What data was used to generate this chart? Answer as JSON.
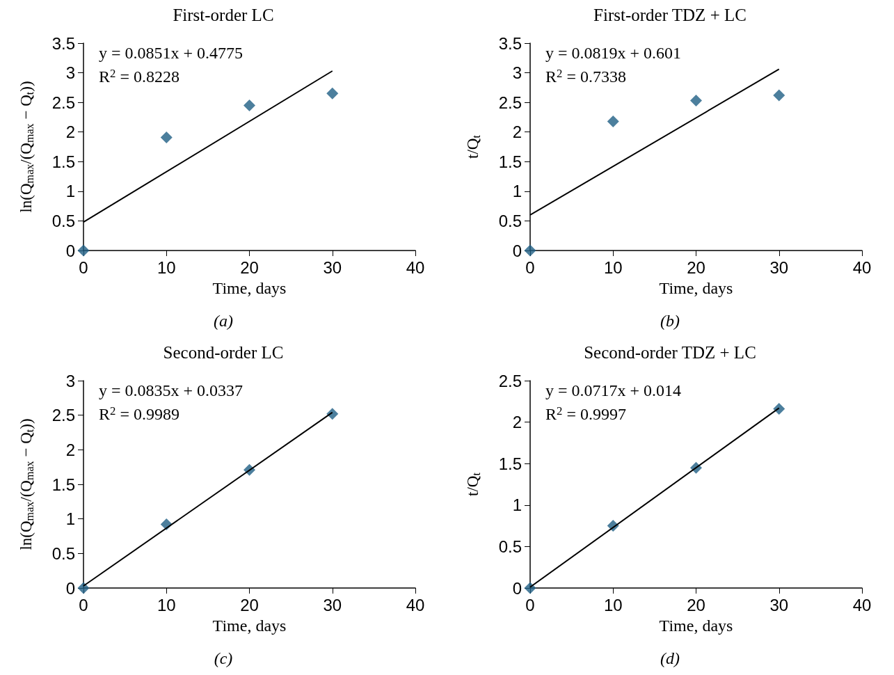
{
  "chart_data": [
    {
      "type": "scatter",
      "title": "First-order LC",
      "xlabel": "Time, days",
      "ylabel": "ln(Q$_{max}$/(Q$_{max}$ − Q$_{t}$))",
      "annotations": [
        "y = 0.0851x + 0.4775",
        "R$^{2}$ = 0.8228",
        "(a)"
      ],
      "xlim": [
        0,
        40
      ],
      "xticks": [
        0,
        10,
        20,
        30,
        40
      ],
      "ylim": [
        0,
        3.5
      ],
      "yticks": [
        0,
        0.5,
        1,
        1.5,
        2,
        2.5,
        3,
        3.5
      ],
      "series": [
        {
          "type": "scatter",
          "color": "#1f5f85",
          "marker": "diamond",
          "x": [
            0,
            10,
            20,
            30
          ],
          "values": [
            0,
            1.91,
            2.45,
            2.65
          ]
        },
        {
          "type": "line",
          "color": "#000000",
          "marker": "none",
          "x": [
            0,
            30
          ],
          "values": [
            0.48,
            3.03
          ]
        }
      ]
    },
    {
      "type": "scatter",
      "title": "First-order TDZ + LC",
      "xlabel": "Time, days",
      "ylabel": "t/Q$_{t}$",
      "annotations": [
        "y = 0.0819x + 0.601",
        "R$^{2}$ = 0.7338",
        "(b)"
      ],
      "xlim": [
        0,
        40
      ],
      "xticks": [
        0,
        10,
        20,
        30,
        40
      ],
      "ylim": [
        0,
        3.5
      ],
      "yticks": [
        0,
        0.5,
        1,
        1.5,
        2,
        2.5,
        3,
        3.5
      ],
      "series": [
        {
          "type": "scatter",
          "color": "#1f5f85",
          "marker": "diamond",
          "x": [
            0,
            10,
            20,
            30
          ],
          "values": [
            0,
            2.18,
            2.53,
            2.62
          ]
        },
        {
          "type": "line",
          "color": "#000000",
          "marker": "none",
          "x": [
            0,
            30
          ],
          "values": [
            0.6,
            3.06
          ]
        }
      ]
    },
    {
      "type": "scatter",
      "title": "Second-order LC",
      "xlabel": "Time, days",
      "ylabel": "ln(Q$_{max}$/(Q$_{max}$ − Q$_{t}$))",
      "annotations": [
        "y = 0.0835x + 0.0337",
        "R$^{2}$ = 0.9989",
        "(c)"
      ],
      "xlim": [
        0,
        40
      ],
      "xticks": [
        0,
        10,
        20,
        30,
        40
      ],
      "ylim": [
        0,
        3
      ],
      "yticks": [
        0,
        0.5,
        1,
        1.5,
        2,
        2.5,
        3
      ],
      "series": [
        {
          "type": "scatter",
          "color": "#1f5f85",
          "marker": "diamond",
          "x": [
            0,
            10,
            20,
            30
          ],
          "values": [
            0,
            0.92,
            1.71,
            2.52
          ]
        },
        {
          "type": "line",
          "color": "#000000",
          "marker": "none",
          "x": [
            0,
            30
          ],
          "values": [
            0.03,
            2.54
          ]
        }
      ]
    },
    {
      "type": "scatter",
      "title": "Second-order TDZ + LC",
      "xlabel": "Time, days",
      "ylabel": "t/Q$_{t}$",
      "annotations": [
        "y = 0.0717x + 0.014",
        "R$^{2}$ = 0.9997",
        "(d)"
      ],
      "xlim": [
        0,
        40
      ],
      "xticks": [
        0,
        10,
        20,
        30,
        40
      ],
      "ylim": [
        0,
        2.5
      ],
      "yticks": [
        0,
        0.5,
        1,
        1.5,
        2,
        2.5
      ],
      "series": [
        {
          "type": "scatter",
          "color": "#1f5f85",
          "marker": "diamond",
          "x": [
            0,
            10,
            20,
            30
          ],
          "values": [
            0,
            0.75,
            1.45,
            2.16
          ]
        },
        {
          "type": "line",
          "color": "#000000",
          "marker": "none",
          "x": [
            0,
            30
          ],
          "values": [
            0.01,
            2.17
          ]
        }
      ]
    }
  ]
}
